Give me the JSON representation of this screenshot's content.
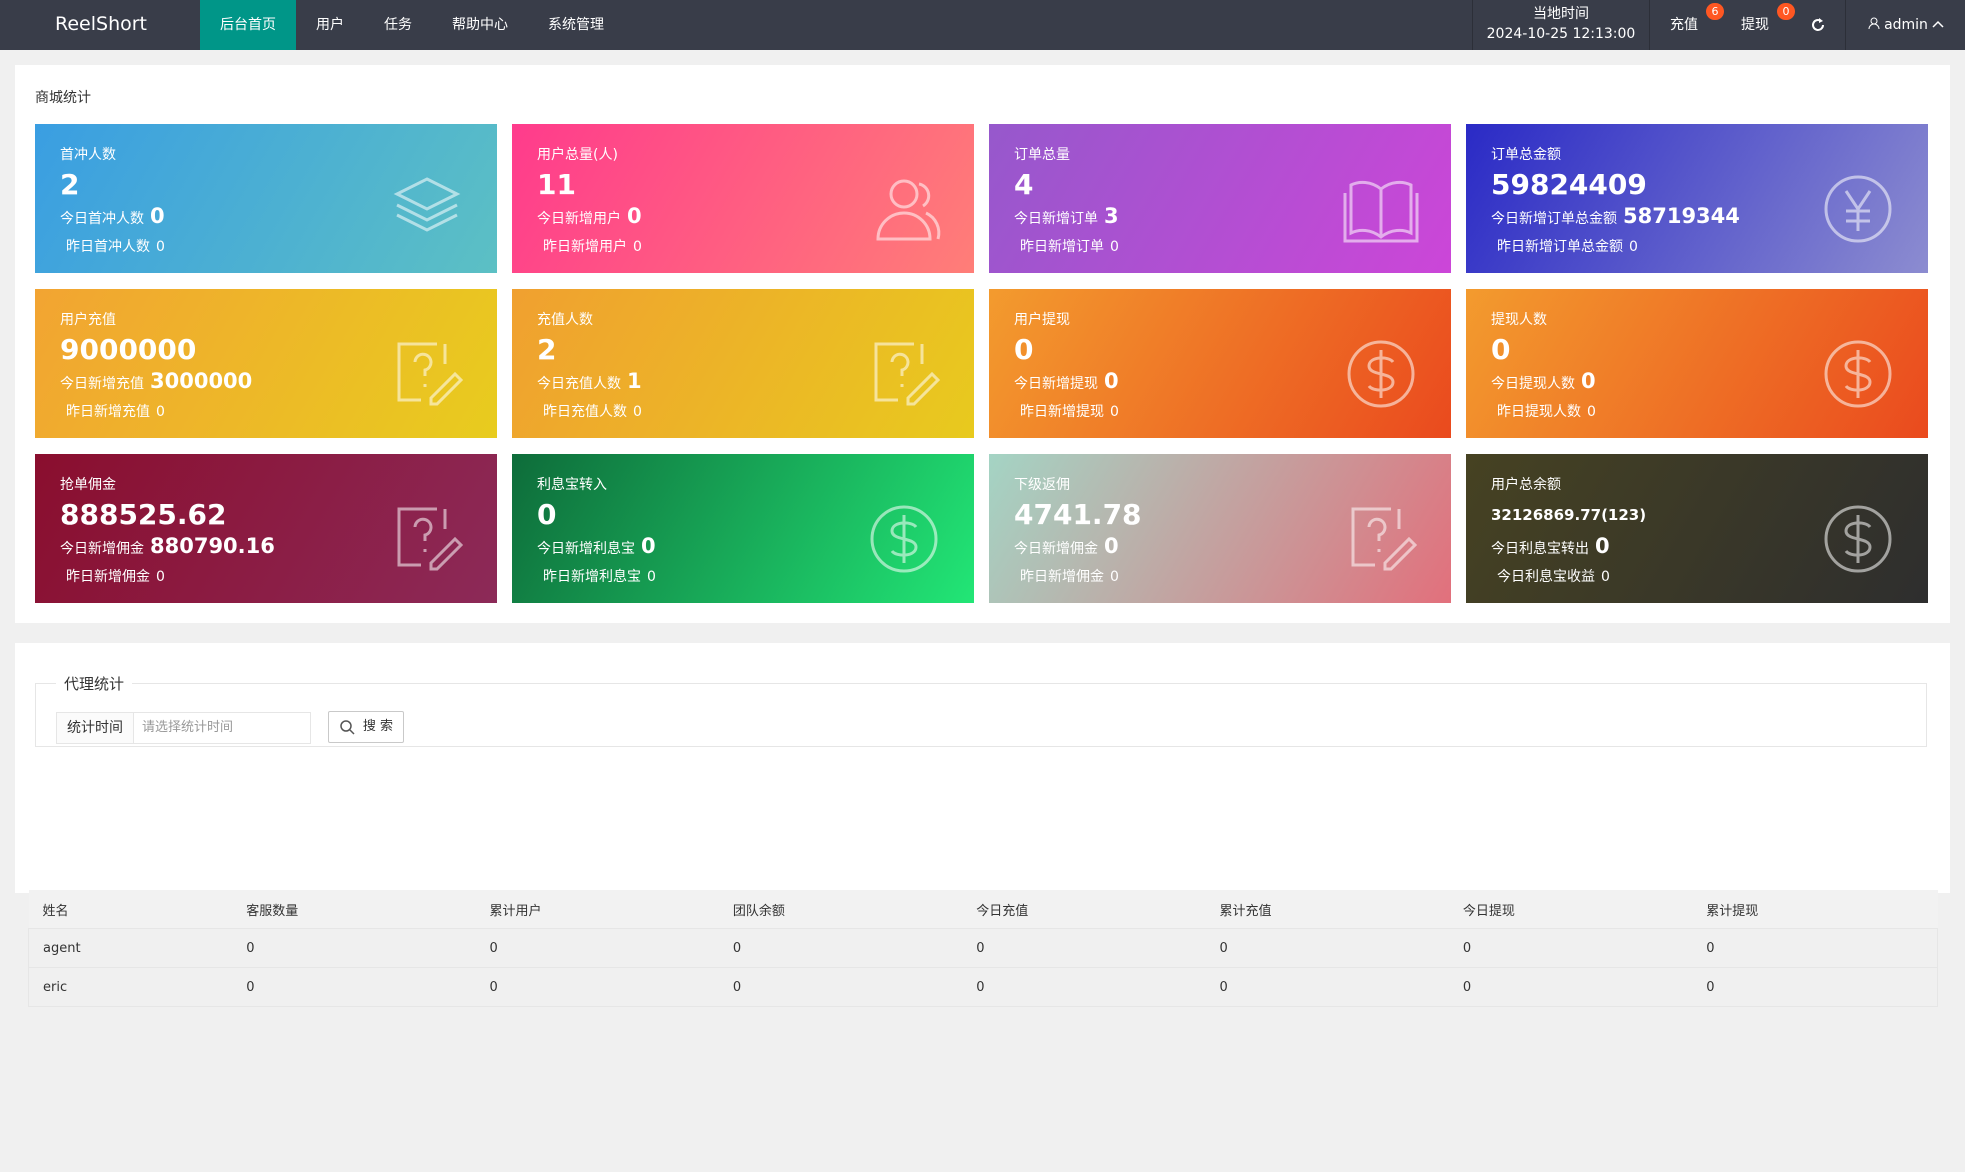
{
  "header": {
    "logo": "ReelShort",
    "nav": [
      "后台首页",
      "用户",
      "任务",
      "帮助中心",
      "系统管理"
    ],
    "time_label": "当地时间",
    "time": "2024-10-25 12:13:00",
    "recharge": "充值",
    "recharge_badge": 6,
    "withdraw": "提现",
    "withdraw_badge": 0,
    "user": "admin"
  },
  "stats": {
    "title": "商城统计",
    "cards": [
      {
        "title": "首冲人数",
        "value": 2,
        "today_label": "今日首冲人数",
        "today": 0,
        "yesterday_label": "昨日首冲人数",
        "yesterday": 0
      },
      {
        "title": "用户总量(人)",
        "value": 11,
        "today_label": "今日新增用户",
        "today": 0,
        "yesterday_label": "昨日新增用户",
        "yesterday": 0
      },
      {
        "title": "订单总量",
        "value": 4,
        "today_label": "今日新增订单",
        "today": 3,
        "yesterday_label": "昨日新增订单",
        "yesterday": 0
      },
      {
        "title": "订单总金额",
        "value": 59824409,
        "today_label": "今日新增订单总金额",
        "today": 58719344,
        "yesterday_label": "昨日新增订单总金额",
        "yesterday": 0
      },
      {
        "title": "用户充值",
        "value": 9000000,
        "today_label": "今日新增充值",
        "today": 3000000,
        "yesterday_label": "昨日新增充值",
        "yesterday": 0
      },
      {
        "title": "充值人数",
        "value": 2,
        "today_label": "今日充值人数",
        "today": 1,
        "yesterday_label": "昨日充值人数",
        "yesterday": 0
      },
      {
        "title": "用户提现",
        "value": 0,
        "today_label": "今日新增提现",
        "today": 0,
        "yesterday_label": "昨日新增提现",
        "yesterday": 0
      },
      {
        "title": "提现人数",
        "value": 0,
        "today_label": "今日提现人数",
        "today": 0,
        "yesterday_label": "昨日提现人数",
        "yesterday": 0
      },
      {
        "title": "抢单佣金",
        "value": 888525.62,
        "today_label": "今日新增佣金",
        "today": 880790.16,
        "yesterday_label": "昨日新增佣金",
        "yesterday": 0
      },
      {
        "title": "利息宝转入",
        "value": 0,
        "today_label": "今日新增利息宝",
        "today": 0,
        "yesterday_label": "昨日新增利息宝",
        "yesterday": 0
      },
      {
        "title": "下级返佣",
        "value": 4741.78,
        "today_label": "今日新增佣金",
        "today": 0,
        "yesterday_label": "昨日新增佣金",
        "yesterday": 0
      },
      {
        "title": "用户总余额",
        "value": "32126869.77(123)",
        "today_label": "今日利息宝转出",
        "today": 0,
        "yesterday_label": "今日利息宝收益",
        "yesterday": 0
      }
    ]
  },
  "agents": {
    "title": "代理统计",
    "filter_label": "统计时间",
    "filter_placeholder": "请选择统计时间",
    "search": "搜 索",
    "columns": [
      "姓名",
      "客服数量",
      "累计用户",
      "团队余额",
      "今日充值",
      "累计充值",
      "今日提现",
      "累计提现"
    ],
    "rows": [
      [
        "agent",
        0,
        0,
        0,
        0,
        0,
        0,
        0
      ],
      [
        "eric",
        0,
        0,
        0,
        0,
        0,
        0,
        0
      ]
    ]
  }
}
